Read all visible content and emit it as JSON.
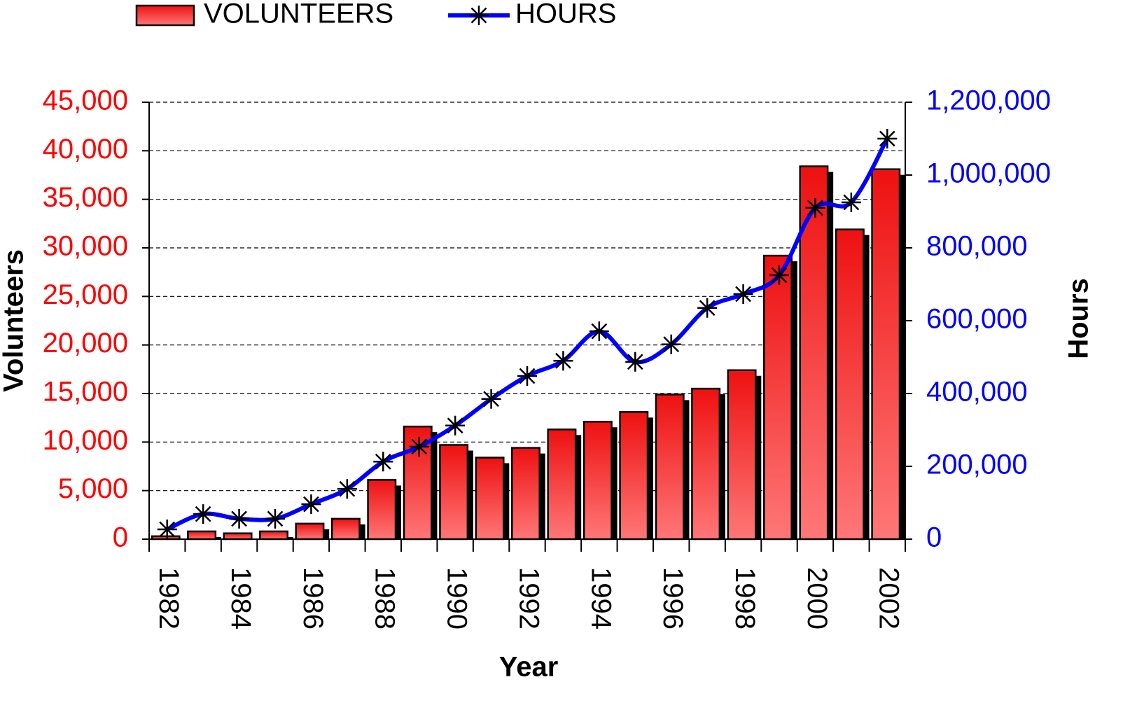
{
  "chart_data": {
    "type": "bar",
    "xlabel": "Year",
    "ylabel": "Volunteers",
    "y2label": "Hours",
    "categories": [
      "1982",
      null,
      "1984",
      null,
      "1986",
      null,
      "1988",
      null,
      "1990",
      null,
      "1992",
      null,
      "1994",
      null,
      "1996",
      null,
      "1998",
      null,
      "2000",
      null,
      "2002"
    ],
    "series": [
      {
        "name": "VOLUNTEERS",
        "type": "bar",
        "color": "#ff0000",
        "values": [
          300,
          800,
          600,
          800,
          1600,
          2100,
          6100,
          11600,
          9700,
          8400,
          9400,
          11300,
          12100,
          13100,
          14900,
          15500,
          17400,
          29200,
          38400,
          31900,
          38100
        ]
      },
      {
        "name": "HOURS",
        "type": "line",
        "axis": "y2",
        "color": "#0000ff",
        "values": [
          27000,
          69000,
          56000,
          56000,
          96000,
          138000,
          213000,
          254000,
          312000,
          385000,
          448000,
          490000,
          571000,
          487000,
          535000,
          635000,
          673000,
          725000,
          910000,
          925000,
          1100000
        ]
      }
    ],
    "ylim": [
      0,
      45000
    ],
    "yticks": [
      0,
      {
        "value": 5000,
        "label": "5,000"
      },
      {
        "value": 10000,
        "label": "10,000"
      },
      {
        "value": 15000,
        "label": "15,000"
      },
      {
        "value": 20000,
        "label": "20,000"
      },
      {
        "value": 25000,
        "label": "25,000"
      },
      {
        "value": 30000,
        "label": "30,000"
      },
      {
        "value": 35000,
        "label": "35,000"
      },
      {
        "value": 40000,
        "label": "40,000"
      },
      {
        "value": 45000,
        "label": "45,000"
      }
    ],
    "y2lim": [
      0,
      1200000
    ],
    "y2ticks": [
      0,
      {
        "value": 200000,
        "label": "200,000"
      },
      {
        "value": 400000,
        "label": "400,000"
      },
      {
        "value": 600000,
        "label": "600,000"
      },
      {
        "value": 800000,
        "label": "800,000"
      },
      {
        "value": 1000000,
        "label": "1,000,000"
      },
      {
        "value": 1200000,
        "label": "1,200,000"
      }
    ],
    "ytick_color": "#ff0000",
    "y2tick_color": "#0000ff",
    "grid": true,
    "legend": "top"
  }
}
